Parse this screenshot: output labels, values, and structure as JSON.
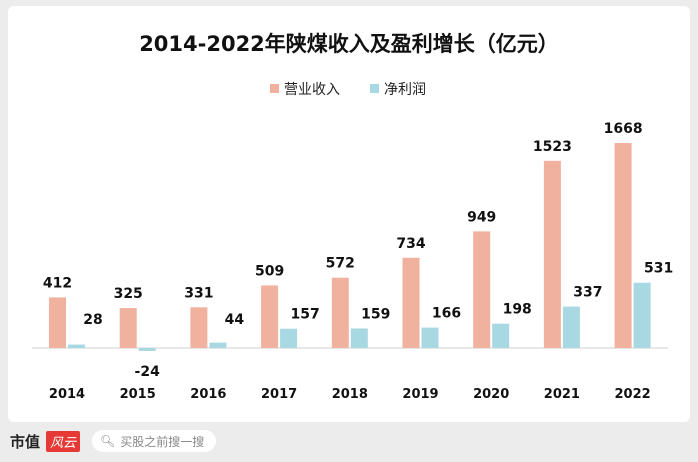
{
  "chart_data": {
    "type": "bar",
    "title": "2014-2022年陕煤收入及盈利增长（亿元）",
    "categories": [
      "2014",
      "2015",
      "2016",
      "2017",
      "2018",
      "2019",
      "2020",
      "2021",
      "2022"
    ],
    "series": [
      {
        "name": "营业收入",
        "color": "#f0b19e",
        "values": [
          412,
          325,
          331,
          509,
          572,
          734,
          949,
          1523,
          1668
        ]
      },
      {
        "name": "净利润",
        "color": "#a8d9e3",
        "values": [
          28,
          -24,
          44,
          157,
          159,
          166,
          198,
          337,
          531
        ]
      }
    ],
    "xlabel": "",
    "ylabel": "",
    "ylim": [
      -50,
      1700
    ],
    "grid": false,
    "legend": "top-center",
    "data_labels": true
  },
  "footer": {
    "brand_text": "市值",
    "brand_logo_text": "风云",
    "search_placeholder": "买股之前搜一搜"
  }
}
